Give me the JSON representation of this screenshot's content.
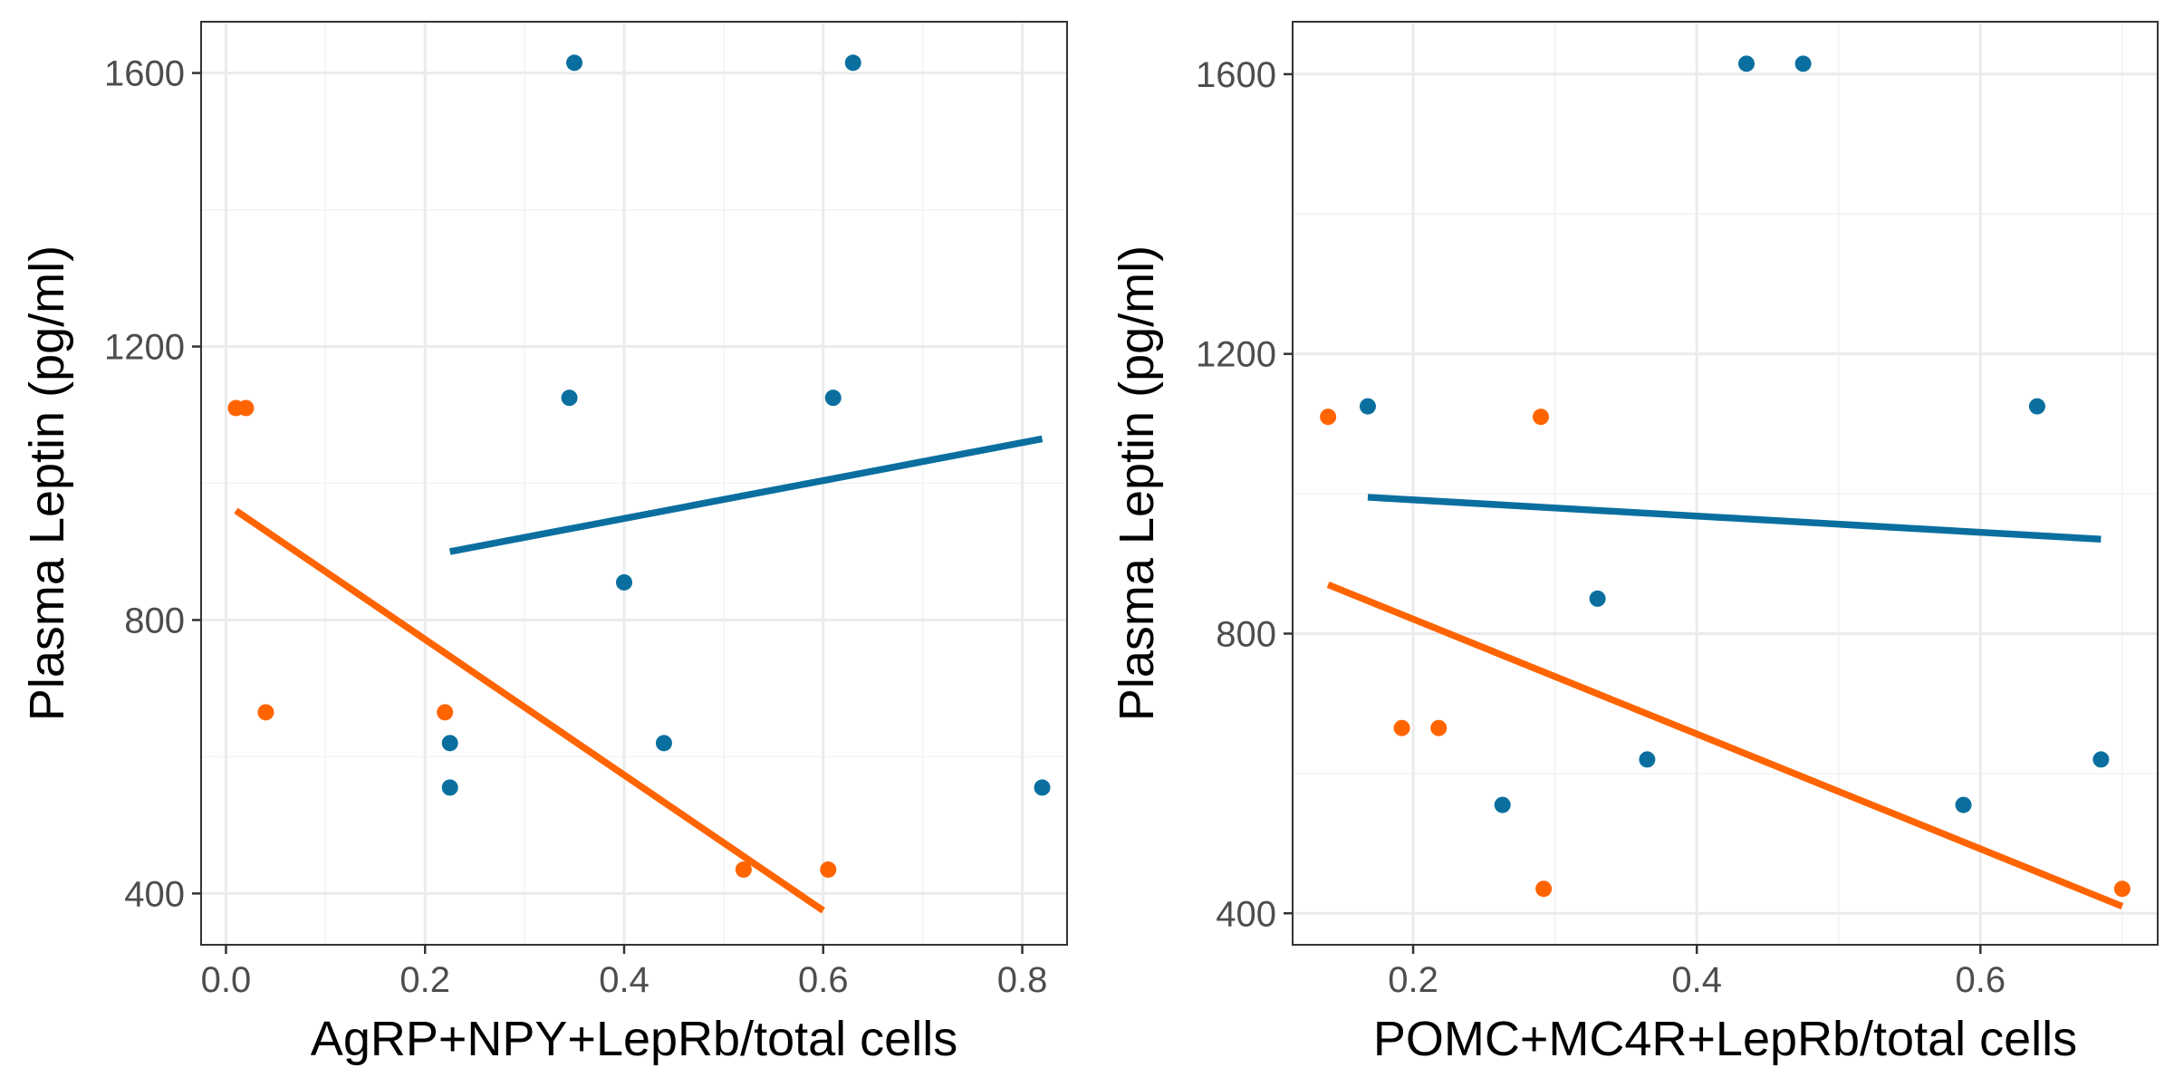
{
  "colors": {
    "group_a": "#0a6f9f",
    "group_b": "#ff6400"
  },
  "chart_data": [
    {
      "type": "scatter",
      "title": "",
      "xlabel": "AgRP+NPY+LepRb/total cells",
      "ylabel": "Plasma Leptin (pg/ml)",
      "xlim": [
        -0.025,
        0.845
      ],
      "ylim": [
        325,
        1675
      ],
      "x_ticks": [
        0.0,
        0.2,
        0.4,
        0.6,
        0.8
      ],
      "x_tick_labels": [
        "0.0",
        "0.2",
        "0.4",
        "0.6",
        "0.8"
      ],
      "y_ticks": [
        400,
        800,
        1200,
        1600
      ],
      "y_tick_labels": [
        "400",
        "800",
        "1200",
        "1600"
      ],
      "grid": true,
      "series": [
        {
          "color": "#0a6f9f",
          "x": [
            0.35,
            0.63,
            0.345,
            0.61,
            0.4,
            0.225,
            0.44,
            0.225,
            0.82
          ],
          "y": [
            1615,
            1615,
            1125,
            1125,
            855,
            620,
            620,
            555,
            555
          ],
          "fit": {
            "x": [
              0.225,
              0.82
            ],
            "y": [
              900,
              1065
            ]
          }
        },
        {
          "color": "#ff6400",
          "x": [
            0.01,
            0.02,
            0.04,
            0.22,
            0.52,
            0.605
          ],
          "y": [
            1110,
            1110,
            665,
            665,
            435,
            435
          ],
          "fit": {
            "x": [
              0.01,
              0.6
            ],
            "y": [
              960,
              375
            ]
          }
        }
      ]
    },
    {
      "type": "scatter",
      "title": "",
      "xlabel": "POMC+MC4R+LepRb/total cells",
      "ylabel": "Plasma Leptin (pg/ml)",
      "xlim": [
        0.115,
        0.725
      ],
      "ylim": [
        355,
        1675
      ],
      "x_ticks": [
        0.2,
        0.4,
        0.6
      ],
      "x_tick_labels": [
        "0.2",
        "0.4",
        "0.6"
      ],
      "y_ticks": [
        400,
        800,
        1200,
        1600
      ],
      "y_tick_labels": [
        "400",
        "800",
        "1200",
        "1600"
      ],
      "grid": true,
      "series": [
        {
          "color": "#0a6f9f",
          "x": [
            0.435,
            0.475,
            0.168,
            0.64,
            0.33,
            0.365,
            0.685,
            0.263,
            0.588
          ],
          "y": [
            1615,
            1615,
            1125,
            1125,
            850,
            620,
            620,
            555,
            555
          ],
          "fit": {
            "x": [
              0.168,
              0.685
            ],
            "y": [
              995,
              935
            ]
          }
        },
        {
          "color": "#ff6400",
          "x": [
            0.14,
            0.29,
            0.192,
            0.218,
            0.292,
            0.7
          ],
          "y": [
            1110,
            1110,
            665,
            665,
            435,
            435
          ],
          "fit": {
            "x": [
              0.14,
              0.7
            ],
            "y": [
              870,
              410
            ]
          }
        }
      ]
    }
  ]
}
